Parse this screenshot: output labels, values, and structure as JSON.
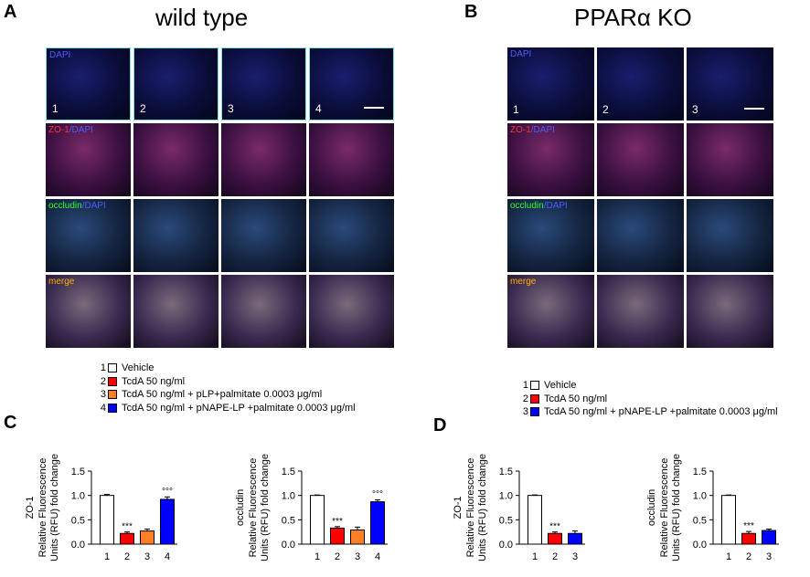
{
  "panels": {
    "A": {
      "letter": "A",
      "title": "wild type"
    },
    "B": {
      "letter": "B",
      "title": "PPARα KO"
    },
    "C": {
      "letter": "C"
    },
    "D": {
      "letter": "D"
    }
  },
  "micrographs": {
    "row_labels": [
      "DAPI",
      "ZO-1/DAPI",
      "occludin/DAPI",
      "merge"
    ],
    "wt_columns": [
      "1",
      "2",
      "3",
      "4"
    ],
    "ko_columns": [
      "1",
      "2",
      "3"
    ]
  },
  "legend_wt": [
    {
      "num": "1",
      "text": "Vehicle",
      "color": "#ffffff"
    },
    {
      "num": "2",
      "text": "TcdA 50 ng/ml",
      "color": "#ff0000"
    },
    {
      "num": "3",
      "text": "TcdA 50 ng/ml + pLP+palmitate 0.0003 μg/ml",
      "color": "#ff7f27"
    },
    {
      "num": "4",
      "text": "TcdA 50 ng/ml + pNAPE-LP +palmitate 0.0003 μg/ml",
      "color": "#0000ff"
    }
  ],
  "legend_ko": [
    {
      "num": "1",
      "text": "Vehicle",
      "color": "#ffffff"
    },
    {
      "num": "2",
      "text": "TcdA 50 ng/ml",
      "color": "#ff0000"
    },
    {
      "num": "3",
      "text": "TcdA 50 ng/ml + pNAPE-LP +palmitate 0.0003 μg/ml",
      "color": "#0000ff"
    }
  ],
  "chart_data": [
    {
      "type": "bar",
      "panel": "C",
      "ylabel_top": "ZO-1",
      "ylabel_mid": "Relative Fluorescence",
      "ylabel_bot": "Units (RFU) fold change",
      "categories": [
        "1",
        "2",
        "3",
        "4"
      ],
      "values": [
        1.0,
        0.22,
        0.27,
        0.92
      ],
      "errors": [
        0.02,
        0.03,
        0.04,
        0.05
      ],
      "colors": [
        "#ffffff",
        "#ff0000",
        "#ff7f27",
        "#0000ff"
      ],
      "annotations": [
        "",
        "***",
        "",
        "°°°"
      ],
      "ylim": [
        0,
        1.5
      ],
      "yticks": [
        "0.0",
        "0.5",
        "1.0",
        "1.5"
      ]
    },
    {
      "type": "bar",
      "panel": "C",
      "ylabel_top": "occludin",
      "ylabel_mid": "Relative Fluorescence",
      "ylabel_bot": "Units (RFU) fold change",
      "categories": [
        "1",
        "2",
        "3",
        "4"
      ],
      "values": [
        1.0,
        0.33,
        0.29,
        0.87
      ],
      "errors": [
        0.01,
        0.03,
        0.06,
        0.04
      ],
      "colors": [
        "#ffffff",
        "#ff0000",
        "#ff7f27",
        "#0000ff"
      ],
      "annotations": [
        "",
        "***",
        "",
        "°°°"
      ],
      "ylim": [
        0,
        1.5
      ],
      "yticks": [
        "0.0",
        "0.5",
        "1.0",
        "1.5"
      ]
    },
    {
      "type": "bar",
      "panel": "D",
      "ylabel_top": "ZO-1",
      "ylabel_mid": "Relative Fluorescence",
      "ylabel_bot": "Units (RFU) fold change",
      "categories": [
        "1",
        "2",
        "3"
      ],
      "values": [
        1.0,
        0.22,
        0.22
      ],
      "errors": [
        0.01,
        0.03,
        0.05
      ],
      "colors": [
        "#ffffff",
        "#ff0000",
        "#0000ff"
      ],
      "annotations": [
        "",
        "***",
        ""
      ],
      "ylim": [
        0,
        1.5
      ],
      "yticks": [
        "0.0",
        "0.5",
        "1.0",
        "1.5"
      ]
    },
    {
      "type": "bar",
      "panel": "D",
      "ylabel_top": "occludin",
      "ylabel_mid": "Relative Fluorescence",
      "ylabel_bot": "Units (RFU) fold change",
      "categories": [
        "1",
        "2",
        "3"
      ],
      "values": [
        1.0,
        0.22,
        0.28
      ],
      "errors": [
        0.01,
        0.04,
        0.03
      ],
      "colors": [
        "#ffffff",
        "#ff0000",
        "#0000ff"
      ],
      "annotations": [
        "",
        "***",
        ""
      ],
      "ylim": [
        0,
        1.5
      ],
      "yticks": [
        "0.0",
        "0.5",
        "1.0",
        "1.5"
      ]
    }
  ]
}
